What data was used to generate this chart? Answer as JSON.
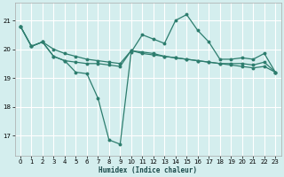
{
  "xlabel": "Humidex (Indice chaleur)",
  "bg_color": "#d4eeee",
  "grid_color": "#ffffff",
  "line_color": "#2d7d6e",
  "x_ticks": [
    0,
    1,
    2,
    3,
    4,
    5,
    6,
    7,
    8,
    9,
    10,
    11,
    12,
    13,
    14,
    15,
    16,
    17,
    18,
    19,
    20,
    21,
    22,
    23
  ],
  "y_ticks": [
    17,
    18,
    19,
    20,
    21
  ],
  "xlim": [
    -0.5,
    23.5
  ],
  "ylim": [
    16.3,
    21.6
  ],
  "line1_x": [
    0,
    1,
    2,
    3,
    4,
    5,
    6,
    7,
    8,
    9,
    10,
    11,
    12,
    13,
    14,
    15,
    16,
    17,
    18,
    19,
    20,
    21,
    22,
    23
  ],
  "line1_y": [
    20.8,
    20.1,
    20.25,
    19.75,
    19.6,
    19.2,
    19.15,
    18.3,
    16.85,
    16.7,
    19.9,
    20.5,
    20.35,
    20.2,
    21.0,
    21.2,
    20.65,
    20.25,
    19.65,
    19.65,
    19.7,
    19.65,
    19.85,
    19.2
  ],
  "line2_x": [
    0,
    1,
    2,
    3,
    4,
    5,
    6,
    7,
    8,
    9,
    10,
    11,
    12,
    13,
    14,
    15,
    16,
    17,
    18,
    19,
    20,
    21,
    22,
    23
  ],
  "line2_y": [
    20.8,
    20.1,
    20.25,
    20.0,
    19.85,
    19.75,
    19.65,
    19.6,
    19.55,
    19.5,
    19.95,
    19.9,
    19.85,
    19.75,
    19.7,
    19.65,
    19.6,
    19.55,
    19.5,
    19.5,
    19.5,
    19.45,
    19.55,
    19.2
  ],
  "line3_x": [
    0,
    1,
    2,
    3,
    4,
    5,
    6,
    7,
    8,
    9,
    10,
    11,
    12,
    13,
    14,
    15,
    16,
    17,
    18,
    19,
    20,
    21,
    22,
    23
  ],
  "line3_y": [
    20.8,
    20.1,
    20.25,
    19.75,
    19.6,
    19.55,
    19.5,
    19.5,
    19.45,
    19.4,
    19.95,
    19.85,
    19.8,
    19.75,
    19.7,
    19.65,
    19.6,
    19.55,
    19.5,
    19.45,
    19.4,
    19.35,
    19.4,
    19.2
  ]
}
